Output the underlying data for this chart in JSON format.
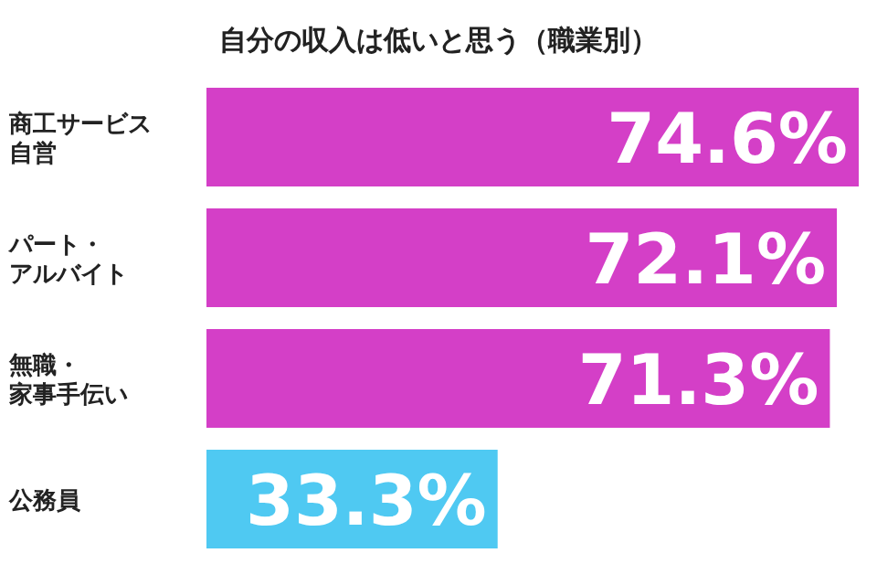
{
  "chart_data": {
    "type": "bar",
    "orientation": "horizontal",
    "title": "自分の収入は低いと思う（職業別）",
    "categories": [
      "商工サービス自営",
      "パート・アルバイト",
      "無職・家事手伝い",
      "公務員"
    ],
    "values": [
      74.6,
      72.1,
      71.3,
      33.3
    ],
    "colors": [
      "#d43fc7",
      "#d43fc7",
      "#d43fc7",
      "#4fc9f2"
    ],
    "value_labels": [
      "74.6%",
      "72.1%",
      "71.3%",
      "33.3%"
    ]
  }
}
